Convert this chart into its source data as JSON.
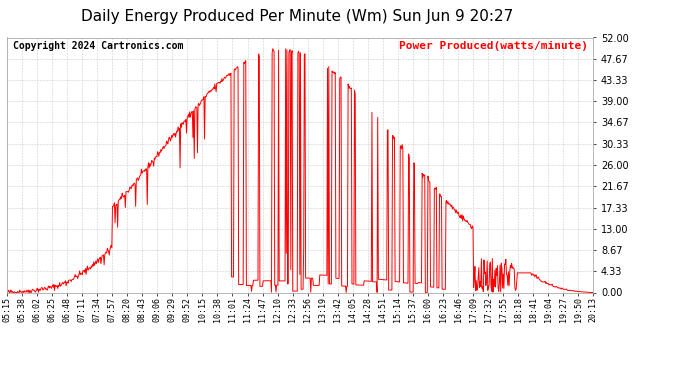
{
  "title": "Daily Energy Produced Per Minute (Wm) Sun Jun 9 20:27",
  "copyright": "Copyright 2024 Cartronics.com",
  "legend_label": "Power Produced(watts/minute)",
  "legend_color": "red",
  "copyright_color": "black",
  "title_color": "black",
  "line_color": "red",
  "background_color": "#ffffff",
  "grid_color": "#cccccc",
  "ymin": 0.0,
  "ymax": 52.0,
  "yticks": [
    0.0,
    4.33,
    8.67,
    13.0,
    17.33,
    21.67,
    26.0,
    30.33,
    34.67,
    39.0,
    43.33,
    47.67,
    52.0
  ],
  "x_tick_labels": [
    "05:15",
    "05:38",
    "06:02",
    "06:25",
    "06:48",
    "07:11",
    "07:34",
    "07:57",
    "08:20",
    "08:43",
    "09:06",
    "09:29",
    "09:52",
    "10:15",
    "10:38",
    "11:01",
    "11:24",
    "11:47",
    "12:10",
    "12:33",
    "12:56",
    "13:19",
    "13:42",
    "14:05",
    "14:28",
    "14:51",
    "15:14",
    "15:37",
    "16:00",
    "16:23",
    "16:46",
    "17:09",
    "17:32",
    "17:55",
    "18:18",
    "18:41",
    "19:04",
    "19:27",
    "19:50",
    "20:13"
  ],
  "title_fontsize": 11,
  "copyright_fontsize": 7,
  "legend_fontsize": 8,
  "ytick_fontsize": 7,
  "xtick_fontsize": 6
}
